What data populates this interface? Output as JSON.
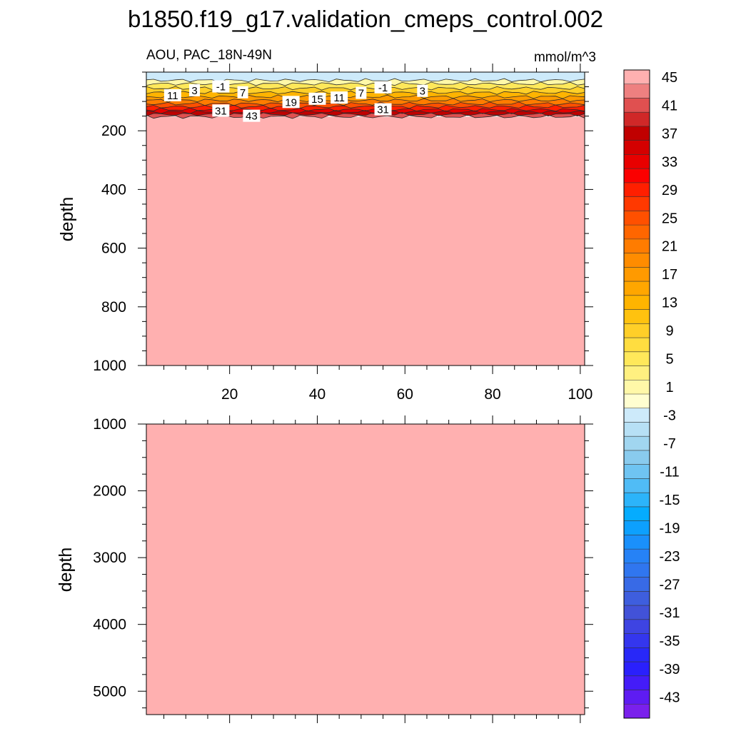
{
  "chart_data": {
    "type": "heatmap",
    "title": "b1850.f19_g17.validation_cmeps_control.002",
    "subtitle_left": "AOU, PAC_18N-49N",
    "units": "mmol/m^3",
    "ylabel": "depth",
    "xlabel": "",
    "panels": [
      {
        "name": "upper",
        "xlim": [
          1,
          101
        ],
        "ylim": [
          0,
          1000
        ],
        "x_ticks": [
          20,
          40,
          60,
          80,
          100
        ],
        "y_ticks": [
          200,
          400,
          600,
          800,
          1000
        ],
        "surface_layers": [
          {
            "level": -3,
            "top": 0,
            "bottom": 28
          },
          {
            "level": 1,
            "top": 28,
            "bottom": 40
          },
          {
            "level": 5,
            "top": 40,
            "bottom": 55
          },
          {
            "level": 9,
            "top": 55,
            "bottom": 70
          },
          {
            "level": 13,
            "top": 70,
            "bottom": 84
          },
          {
            "level": 17,
            "top": 84,
            "bottom": 96
          },
          {
            "level": 21,
            "top": 96,
            "bottom": 108
          },
          {
            "level": 25,
            "top": 108,
            "bottom": 118
          },
          {
            "level": 29,
            "top": 118,
            "bottom": 128
          },
          {
            "level": 33,
            "top": 128,
            "bottom": 136
          },
          {
            "level": 37,
            "top": 136,
            "bottom": 144
          },
          {
            "level": 41,
            "top": 144,
            "bottom": 152
          },
          {
            "level": 45,
            "top": 152,
            "bottom": 1000
          }
        ],
        "contour_labels": [
          {
            "x": 7,
            "y": 80,
            "text": "11"
          },
          {
            "x": 12,
            "y": 63,
            "text": "3"
          },
          {
            "x": 18,
            "y": 50,
            "text": "-1"
          },
          {
            "x": 23,
            "y": 70,
            "text": "7"
          },
          {
            "x": 18,
            "y": 132,
            "text": "31"
          },
          {
            "x": 25,
            "y": 150,
            "text": "43"
          },
          {
            "x": 34,
            "y": 103,
            "text": "19"
          },
          {
            "x": 40,
            "y": 92,
            "text": "15"
          },
          {
            "x": 45,
            "y": 88,
            "text": "11"
          },
          {
            "x": 50,
            "y": 72,
            "text": "7"
          },
          {
            "x": 55,
            "y": 53,
            "text": "-1"
          },
          {
            "x": 55,
            "y": 128,
            "text": "31"
          },
          {
            "x": 64,
            "y": 65,
            "text": "3"
          }
        ]
      },
      {
        "name": "lower",
        "xlim": [
          1,
          101
        ],
        "ylim": [
          1000,
          5350
        ],
        "x_ticks": [
          20,
          40,
          60,
          80,
          100
        ],
        "y_ticks": [
          1000,
          2000,
          3000,
          4000,
          5000
        ],
        "fill_level": 45
      }
    ],
    "colorbar": {
      "levels": [
        45,
        43,
        41,
        39,
        37,
        35,
        33,
        31,
        29,
        27,
        25,
        23,
        21,
        19,
        17,
        15,
        13,
        11,
        9,
        7,
        5,
        3,
        1,
        -1,
        -3,
        -5,
        -7,
        -9,
        -11,
        -13,
        -15,
        -17,
        -19,
        -21,
        -23,
        -25,
        -27,
        -29,
        -31,
        -33,
        -35,
        -37,
        -39,
        -41,
        -43,
        -45
      ],
      "labels": [
        "45",
        "41",
        "37",
        "33",
        "29",
        "25",
        "21",
        "17",
        "13",
        "9",
        "5",
        "1",
        "-3",
        "-7",
        "-11",
        "-15",
        "-19",
        "-23",
        "-27",
        "-31",
        "-35",
        "-39",
        "-43"
      ],
      "colors": [
        "#ffb0b0",
        "#ee8080",
        "#e05050",
        "#d02828",
        "#c00000",
        "#d40000",
        "#e80000",
        "#fb0000",
        "#ff1f00",
        "#ff3900",
        "#ff5000",
        "#ff6600",
        "#ff7c00",
        "#ff8c00",
        "#ff9a00",
        "#ffa600",
        "#ffb400",
        "#ffc20f",
        "#ffcf28",
        "#ffdd40",
        "#ffe85a",
        "#fff080",
        "#fff8a8",
        "#fffed0",
        "#cdeafa",
        "#b7e0f5",
        "#a1d6f0",
        "#89cbee",
        "#6fc4f2",
        "#50bcf6",
        "#2cb4fa",
        "#05acfe",
        "#0da0fe",
        "#1a90fb",
        "#2682f6",
        "#3076ef",
        "#386ae6",
        "#3e5ede",
        "#4252d8",
        "#3e44e2",
        "#3436ee",
        "#2828f8",
        "#2a20fc",
        "#441cf8",
        "#5e1cf2",
        "#7a20ec"
      ]
    }
  }
}
